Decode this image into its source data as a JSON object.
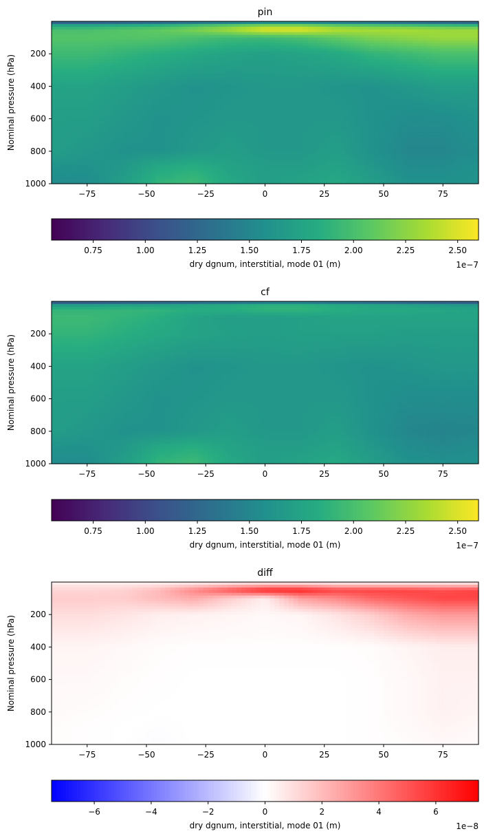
{
  "chart_data": [
    {
      "type": "heatmap",
      "title": "pin",
      "xlabel": "",
      "ylabel": "Nominal pressure (hPa)",
      "xlim": [
        -90,
        90
      ],
      "ylim": [
        1000,
        0
      ],
      "xticks": [
        -75,
        -50,
        -25,
        0,
        25,
        50,
        75
      ],
      "yticks": [
        200,
        400,
        600,
        800,
        1000
      ],
      "colormap": "viridis",
      "grid": false,
      "colorbar": {
        "label": "dry dgnum, interstitial, mode 01 (m)",
        "range": [
          0.55,
          2.6
        ],
        "ticks": [
          0.75,
          1.0,
          1.25,
          1.5,
          1.75,
          2.0,
          2.25,
          2.5
        ],
        "tick_labels": [
          "0.75",
          "1.00",
          "1.25",
          "1.50",
          "1.75",
          "2.00",
          "2.25",
          "2.50"
        ],
        "offset": "1e−7"
      },
      "field": {
        "lat": [
          -90,
          -75,
          -60,
          -45,
          -30,
          -15,
          0,
          15,
          30,
          45,
          60,
          75,
          90
        ],
        "pressure": [
          0,
          20,
          50,
          100,
          200,
          400,
          600,
          800,
          900,
          1000
        ],
        "values": [
          [
            0.9,
            0.9,
            0.95,
            1.0,
            1.05,
            1.1,
            1.2,
            1.2,
            1.1,
            1.05,
            1.0,
            0.95,
            0.9
          ],
          [
            1.7,
            1.7,
            1.75,
            1.8,
            1.9,
            2.0,
            2.1,
            2.1,
            2.0,
            1.95,
            1.9,
            1.85,
            1.8
          ],
          [
            2.0,
            2.0,
            2.05,
            2.1,
            2.2,
            2.35,
            2.55,
            2.55,
            2.4,
            2.35,
            2.35,
            2.3,
            2.3
          ],
          [
            2.05,
            2.05,
            2.05,
            2.05,
            2.0,
            1.95,
            1.95,
            2.0,
            2.1,
            2.2,
            2.25,
            2.3,
            2.3
          ],
          [
            1.95,
            1.95,
            1.9,
            1.85,
            1.8,
            1.75,
            1.72,
            1.75,
            1.8,
            1.9,
            1.95,
            2.0,
            2.0
          ],
          [
            1.75,
            1.75,
            1.7,
            1.65,
            1.6,
            1.62,
            1.65,
            1.65,
            1.62,
            1.6,
            1.65,
            1.7,
            1.7
          ],
          [
            1.7,
            1.7,
            1.65,
            1.6,
            1.62,
            1.65,
            1.65,
            1.65,
            1.65,
            1.6,
            1.55,
            1.55,
            1.6
          ],
          [
            1.7,
            1.65,
            1.6,
            1.6,
            1.65,
            1.7,
            1.65,
            1.65,
            1.7,
            1.6,
            1.5,
            1.5,
            1.55
          ],
          [
            1.6,
            1.6,
            1.65,
            1.8,
            1.85,
            1.75,
            1.7,
            1.7,
            1.75,
            1.65,
            1.55,
            1.55,
            1.6
          ],
          [
            1.55,
            1.55,
            1.7,
            1.9,
            1.95,
            1.8,
            1.7,
            1.75,
            1.8,
            1.7,
            1.6,
            1.6,
            1.6
          ]
        ]
      }
    },
    {
      "type": "heatmap",
      "title": "cf",
      "xlabel": "",
      "ylabel": "Nominal pressure (hPa)",
      "xlim": [
        -90,
        90
      ],
      "ylim": [
        1000,
        0
      ],
      "xticks": [
        -75,
        -50,
        -25,
        0,
        25,
        50,
        75
      ],
      "yticks": [
        200,
        400,
        600,
        800,
        1000
      ],
      "colormap": "viridis",
      "grid": false,
      "colorbar": {
        "label": "dry dgnum, interstitial, mode 01 (m)",
        "range": [
          0.55,
          2.6
        ],
        "ticks": [
          0.75,
          1.0,
          1.25,
          1.5,
          1.75,
          2.0,
          2.25,
          2.5
        ],
        "tick_labels": [
          "0.75",
          "1.00",
          "1.25",
          "1.50",
          "1.75",
          "2.00",
          "2.25",
          "2.50"
        ],
        "offset": "1e−7"
      },
      "field": {
        "lat": [
          -90,
          -75,
          -60,
          -45,
          -30,
          -15,
          0,
          15,
          30,
          45,
          60,
          75,
          90
        ],
        "pressure": [
          0,
          20,
          50,
          100,
          200,
          400,
          600,
          800,
          900,
          1000
        ],
        "values": [
          [
            0.9,
            0.9,
            0.95,
            1.0,
            1.05,
            1.1,
            1.2,
            1.2,
            1.1,
            1.05,
            1.0,
            0.95,
            0.9
          ],
          [
            1.65,
            1.65,
            1.7,
            1.7,
            1.75,
            1.8,
            1.85,
            1.85,
            1.8,
            1.75,
            1.7,
            1.65,
            1.6
          ],
          [
            1.9,
            1.9,
            1.92,
            1.9,
            1.85,
            1.85,
            1.9,
            1.9,
            1.85,
            1.8,
            1.8,
            1.78,
            1.75
          ],
          [
            1.95,
            1.95,
            1.9,
            1.85,
            1.75,
            1.7,
            1.7,
            1.72,
            1.75,
            1.75,
            1.75,
            1.75,
            1.75
          ],
          [
            1.9,
            1.9,
            1.85,
            1.8,
            1.75,
            1.72,
            1.7,
            1.72,
            1.72,
            1.72,
            1.7,
            1.7,
            1.7
          ],
          [
            1.75,
            1.75,
            1.7,
            1.65,
            1.6,
            1.62,
            1.65,
            1.65,
            1.62,
            1.6,
            1.62,
            1.65,
            1.65
          ],
          [
            1.7,
            1.7,
            1.65,
            1.6,
            1.62,
            1.65,
            1.65,
            1.65,
            1.65,
            1.6,
            1.55,
            1.55,
            1.55
          ],
          [
            1.7,
            1.65,
            1.6,
            1.6,
            1.65,
            1.7,
            1.65,
            1.65,
            1.7,
            1.6,
            1.5,
            1.48,
            1.5
          ],
          [
            1.6,
            1.6,
            1.65,
            1.8,
            1.85,
            1.75,
            1.7,
            1.7,
            1.75,
            1.65,
            1.55,
            1.52,
            1.55
          ],
          [
            1.55,
            1.55,
            1.7,
            1.9,
            1.95,
            1.8,
            1.7,
            1.75,
            1.8,
            1.7,
            1.6,
            1.58,
            1.58
          ]
        ]
      }
    },
    {
      "type": "heatmap",
      "title": "diff",
      "xlabel": "",
      "ylabel": "Nominal pressure (hPa)",
      "xlim": [
        -90,
        90
      ],
      "ylim": [
        1000,
        0
      ],
      "xticks": [
        -75,
        -50,
        -25,
        0,
        25,
        50,
        75
      ],
      "yticks": [
        200,
        400,
        600,
        800,
        1000
      ],
      "colormap": "bwr",
      "grid": false,
      "colorbar": {
        "label": "dry dgnum, interstitial, mode 01 (m)",
        "range": [
          -7.5,
          7.5
        ],
        "ticks": [
          -6,
          -4,
          -2,
          0,
          2,
          4,
          6
        ],
        "tick_labels": [
          "−6",
          "−4",
          "−2",
          "0",
          "2",
          "4",
          "6"
        ],
        "offset": "1e−8"
      },
      "field": {
        "lat": [
          -90,
          -75,
          -60,
          -45,
          -30,
          -15,
          0,
          15,
          30,
          45,
          60,
          75,
          90
        ],
        "pressure": [
          0,
          20,
          50,
          100,
          200,
          400,
          600,
          800,
          900,
          1000
        ],
        "values": [
          [
            0.3,
            0.3,
            0.3,
            0.3,
            0.3,
            0.3,
            0.3,
            0.3,
            0.3,
            0.3,
            0.3,
            0.3,
            0.3
          ],
          [
            0.8,
            0.8,
            0.8,
            1.0,
            1.5,
            2.0,
            2.5,
            2.5,
            2.0,
            2.0,
            2.0,
            2.0,
            2.0
          ],
          [
            1.2,
            1.2,
            1.3,
            2.0,
            3.5,
            5.0,
            6.5,
            6.5,
            5.5,
            5.5,
            5.5,
            5.2,
            5.5
          ],
          [
            1.5,
            1.5,
            1.5,
            2.0,
            2.5,
            1.5,
            0.5,
            2.8,
            3.5,
            4.5,
            5.0,
            5.5,
            5.5
          ],
          [
            1.0,
            1.0,
            0.8,
            0.5,
            0.4,
            0.3,
            0.2,
            0.3,
            0.8,
            1.5,
            2.5,
            3.0,
            3.0
          ],
          [
            0.3,
            0.3,
            0.2,
            0.1,
            0.05,
            0.05,
            0.05,
            0.05,
            0.05,
            0.1,
            0.3,
            0.5,
            0.5
          ],
          [
            0.2,
            0.2,
            0.1,
            0.05,
            0.0,
            0.0,
            0.0,
            0.0,
            0.0,
            0.05,
            0.2,
            0.4,
            0.4
          ],
          [
            0.15,
            0.1,
            0.05,
            0.0,
            0.0,
            0.0,
            0.0,
            0.0,
            0.0,
            0.05,
            0.2,
            0.4,
            0.3
          ],
          [
            0.1,
            0.05,
            0.0,
            -0.05,
            0.0,
            0.0,
            0.0,
            0.0,
            0.0,
            0.05,
            0.15,
            0.3,
            0.2
          ],
          [
            0.1,
            0.05,
            0.0,
            -0.1,
            0.0,
            0.0,
            0.0,
            0.0,
            0.0,
            0.05,
            0.1,
            0.2,
            0.15
          ]
        ]
      }
    }
  ]
}
